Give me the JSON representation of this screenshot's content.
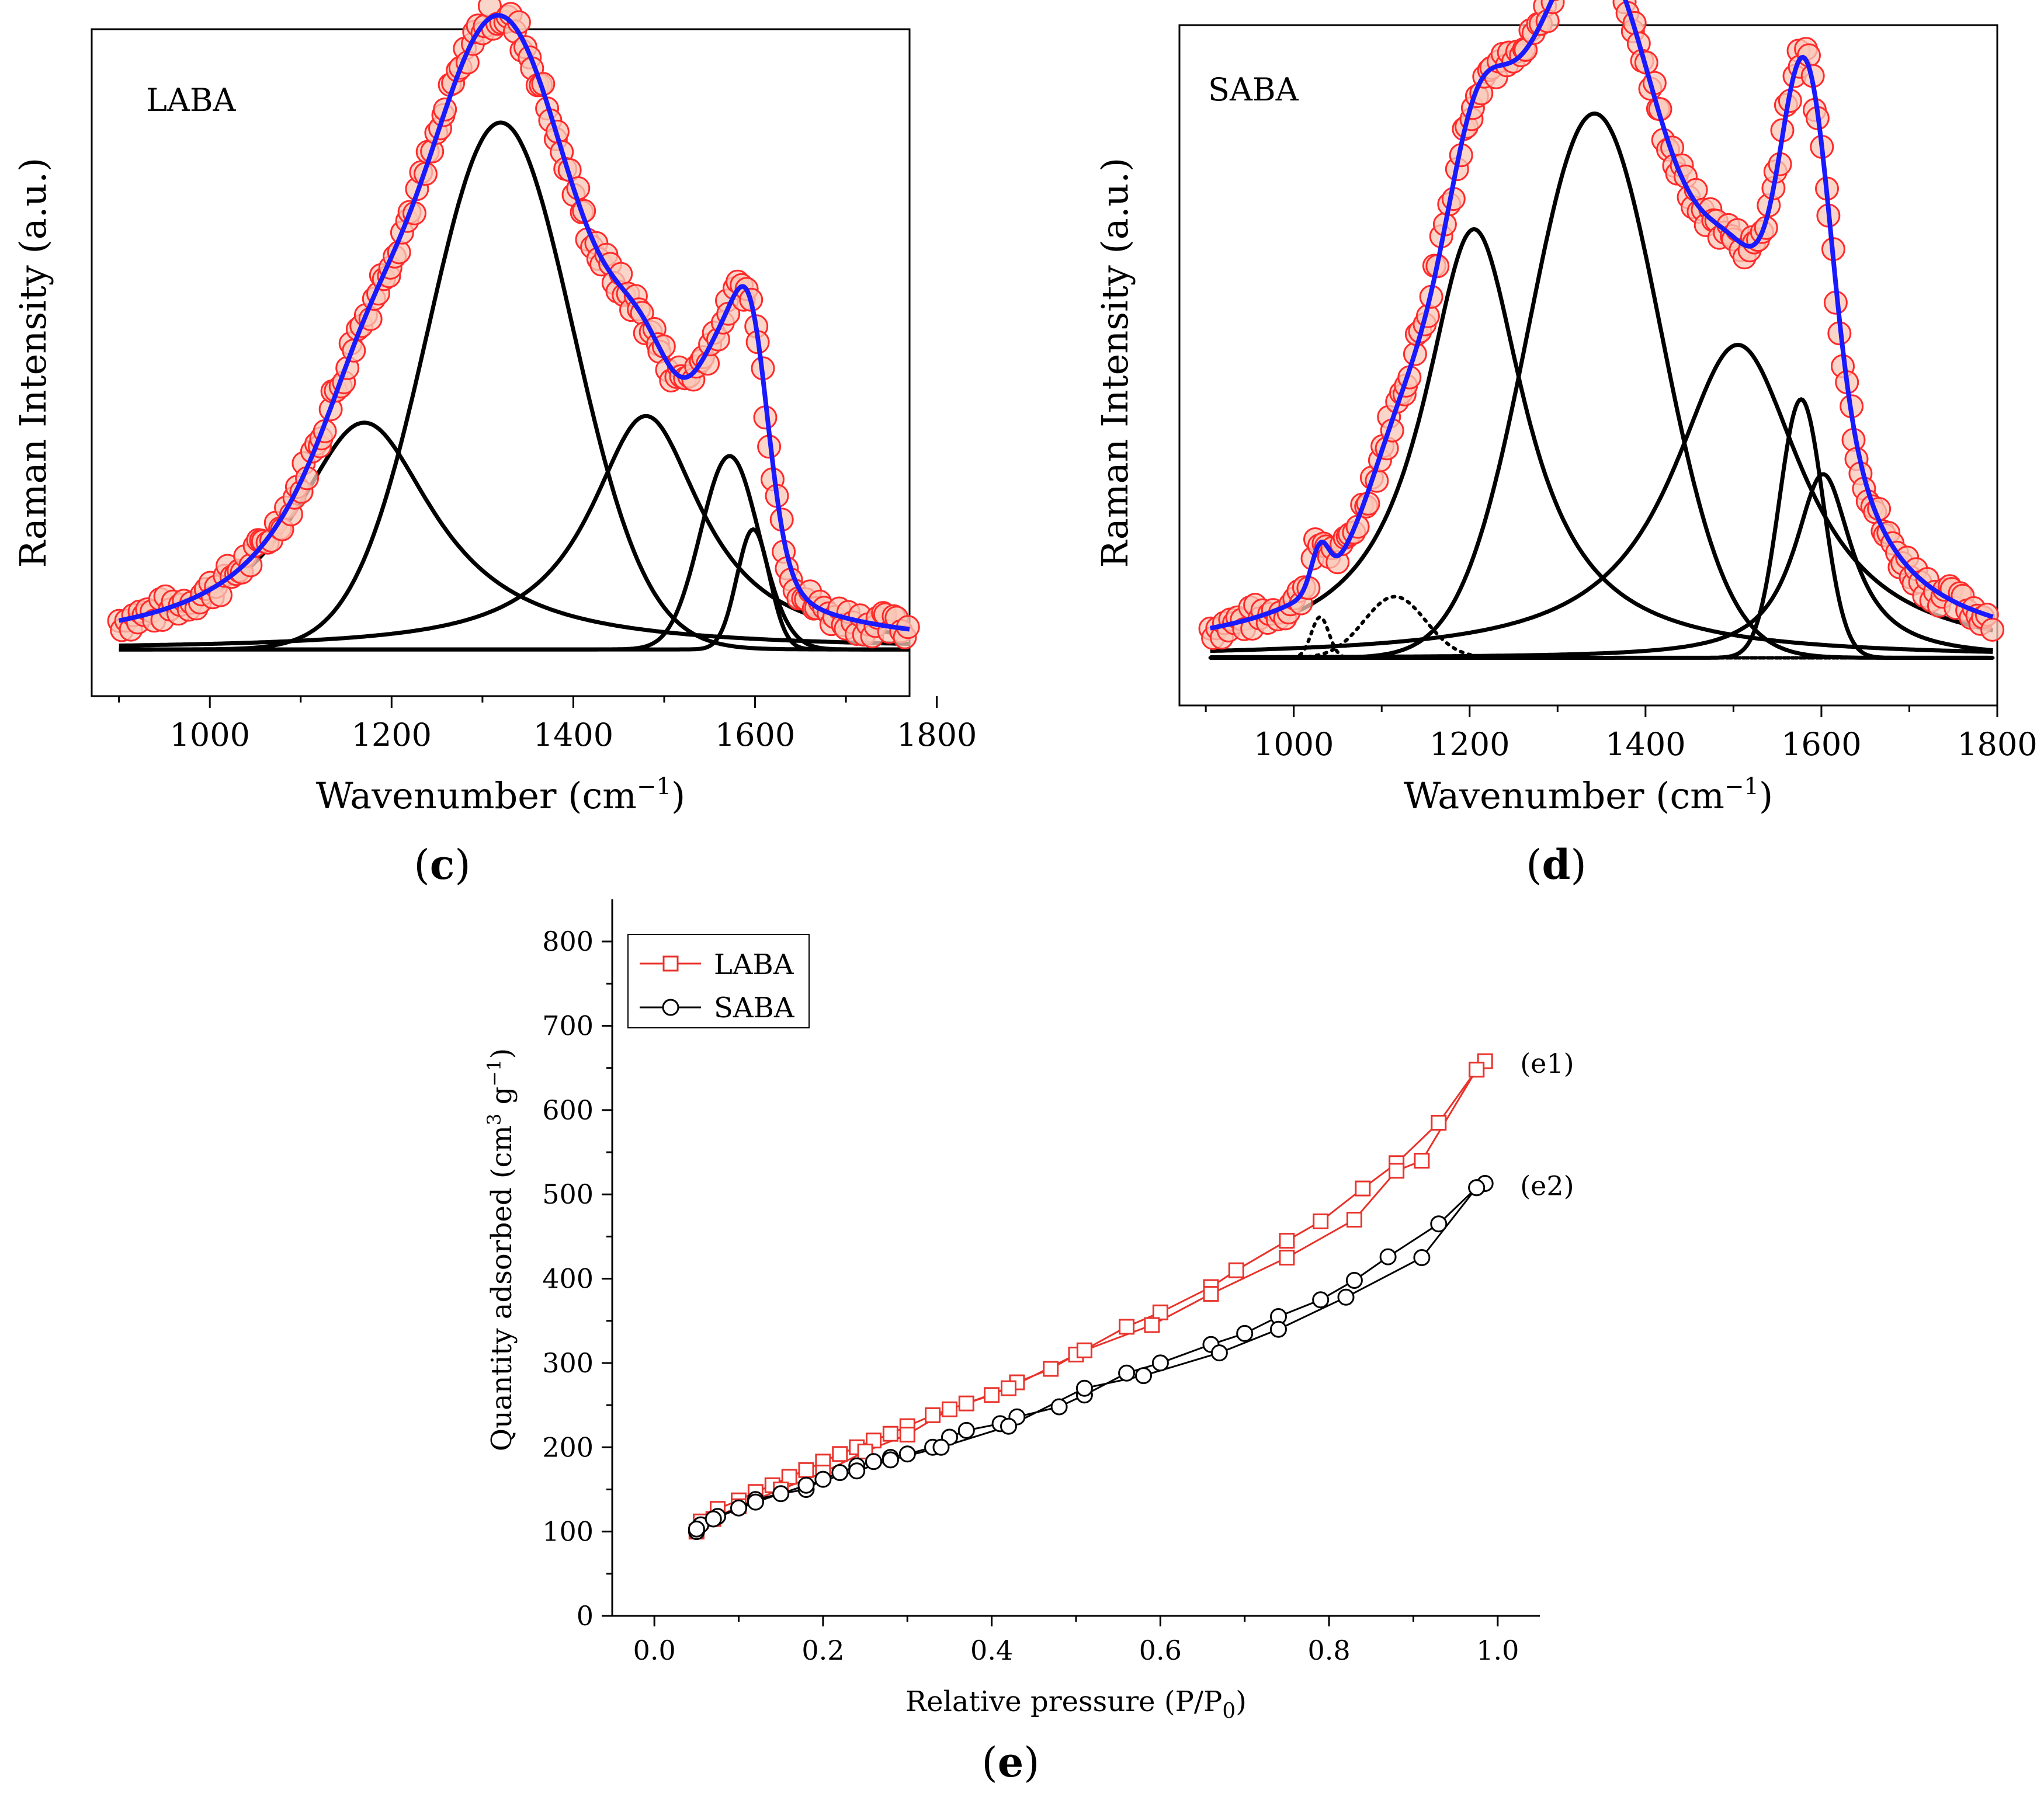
{
  "colors": {
    "raw_data_stroke": "#ff2a2a",
    "raw_data_fill": "#f8c8b8",
    "fit_envelope": "#1a1aff",
    "component": "#000000",
    "laba_series": "#e8322a",
    "saba_series": "#000000"
  },
  "panels": {
    "c": {
      "caption_letter": "c",
      "caption_open": "(",
      "caption_close": ")"
    },
    "d": {
      "caption_letter": "d",
      "caption_open": "(",
      "caption_close": ")"
    },
    "e": {
      "caption_letter": "e",
      "caption_open": "(",
      "caption_close": ")"
    }
  },
  "chart_data": [
    {
      "id": "c",
      "type": "line",
      "inset_label": "LABA",
      "xlabel": "Wavenumber (cm",
      "xlabel_sup": "−1",
      "xlabel_close": ")",
      "ylabel": "Raman Intensity (a.u.)",
      "xlim": [
        870,
        1770
      ],
      "ylim": [
        0,
        1
      ],
      "xticks": [
        1000,
        1200,
        1400,
        1600,
        1800
      ],
      "x_range": [
        900,
        1770
      ],
      "baseline": 0.07,
      "components": [
        {
          "center": 1170,
          "height": 0.34,
          "width": 95,
          "shape": "lorentz",
          "style": "solid"
        },
        {
          "center": 1320,
          "height": 0.79,
          "width": 80,
          "shape": "gauss",
          "style": "solid"
        },
        {
          "center": 1480,
          "height": 0.35,
          "width": 75,
          "shape": "lorentz",
          "style": "solid"
        },
        {
          "center": 1572,
          "height": 0.29,
          "width": 32,
          "shape": "gauss",
          "style": "solid"
        },
        {
          "center": 1598,
          "height": 0.18,
          "width": 18,
          "shape": "gauss",
          "style": "solid"
        }
      ],
      "raw_noise": 0.02
    },
    {
      "id": "d",
      "type": "line",
      "inset_label": "SABA",
      "xlabel": "Wavenumber (cm",
      "xlabel_sup": "−1",
      "xlabel_close": ")",
      "ylabel": "Raman Intensity (a.u.)",
      "xlim": [
        870,
        1800
      ],
      "ylim": [
        0,
        1
      ],
      "xticks": [
        1000,
        1200,
        1400,
        1600,
        1800
      ],
      "x_range": [
        905,
        1795
      ],
      "baseline": 0.07,
      "components": [
        {
          "center": 1030,
          "height": 0.06,
          "width": 10,
          "shape": "gauss",
          "style": "dotted"
        },
        {
          "center": 1115,
          "height": 0.09,
          "width": 35,
          "shape": "gauss",
          "style": "dotted"
        },
        {
          "center": 1205,
          "height": 0.63,
          "width": 70,
          "shape": "lorentz",
          "style": "solid"
        },
        {
          "center": 1342,
          "height": 0.8,
          "width": 75,
          "shape": "gauss",
          "style": "solid"
        },
        {
          "center": 1505,
          "height": 0.46,
          "width": 90,
          "shape": "lorentz",
          "style": "solid"
        },
        {
          "center": 1577,
          "height": 0.38,
          "width": 25,
          "shape": "gauss",
          "style": "solid"
        },
        {
          "center": 1602,
          "height": 0.27,
          "width": 40,
          "shape": "lorentz",
          "style": "solid"
        }
      ],
      "raw_noise": 0.02
    },
    {
      "id": "e",
      "type": "line",
      "xlabel": "Relative pressure (P/P",
      "xlabel_sub": "0",
      "xlabel_close": ")",
      "ylabel_main": "Quantity adsorbed (cm",
      "ylabel_sup1": "3",
      "ylabel_mid": " g",
      "ylabel_sup2": "−1",
      "ylabel_close": ")",
      "xlim": [
        -0.05,
        1.05
      ],
      "ylim": [
        0,
        850
      ],
      "xticks": [
        0.0,
        0.2,
        0.4,
        0.6,
        0.8,
        1.0
      ],
      "xticklabels": [
        "0.0",
        "0.2",
        "0.4",
        "0.6",
        "0.8",
        "1.0"
      ],
      "yticks": [
        0,
        100,
        200,
        300,
        400,
        500,
        600,
        700,
        800
      ],
      "yticklabels": [
        "0",
        "100",
        "200",
        "300",
        "400",
        "500",
        "600",
        "700",
        "800"
      ],
      "legend_position": "top-left",
      "series": [
        {
          "name": "LABA",
          "marker": "square",
          "annotation": "(e1)",
          "x": [
            0.05,
            0.055,
            0.075,
            0.1,
            0.12,
            0.14,
            0.16,
            0.18,
            0.2,
            0.22,
            0.24,
            0.26,
            0.28,
            0.3,
            0.33,
            0.37,
            0.4,
            0.43,
            0.47,
            0.5,
            0.56,
            0.6,
            0.66,
            0.69,
            0.75,
            0.79,
            0.84,
            0.88,
            0.93,
            0.975,
            0.985,
            0.975,
            0.91,
            0.88,
            0.83,
            0.75,
            0.66,
            0.59,
            0.51,
            0.42,
            0.35,
            0.3,
            0.25,
            0.2,
            0.15,
            0.1,
            0.07,
            0.05
          ],
          "y": [
            100,
            112,
            127,
            137,
            147,
            155,
            165,
            173,
            183,
            192,
            200,
            208,
            216,
            225,
            238,
            252,
            262,
            277,
            293,
            310,
            343,
            360,
            390,
            410,
            445,
            468,
            507,
            537,
            585,
            648,
            658,
            648,
            540,
            528,
            470,
            425,
            382,
            345,
            315,
            270,
            245,
            215,
            195,
            170,
            150,
            130,
            115,
            100
          ]
        },
        {
          "name": "SABA",
          "marker": "circle",
          "annotation": "(e2)",
          "x": [
            0.05,
            0.055,
            0.075,
            0.1,
            0.12,
            0.15,
            0.18,
            0.2,
            0.22,
            0.24,
            0.26,
            0.28,
            0.3,
            0.33,
            0.35,
            0.37,
            0.41,
            0.43,
            0.48,
            0.51,
            0.56,
            0.6,
            0.66,
            0.7,
            0.74,
            0.79,
            0.83,
            0.87,
            0.93,
            0.975,
            0.985,
            0.975,
            0.91,
            0.82,
            0.74,
            0.67,
            0.58,
            0.51,
            0.42,
            0.34,
            0.28,
            0.24,
            0.18,
            0.12,
            0.07,
            0.05
          ],
          "y": [
            100,
            108,
            118,
            128,
            138,
            145,
            150,
            162,
            170,
            178,
            183,
            188,
            192,
            200,
            212,
            220,
            228,
            236,
            248,
            262,
            288,
            300,
            322,
            335,
            355,
            375,
            398,
            426,
            465,
            508,
            513,
            508,
            425,
            378,
            340,
            312,
            285,
            270,
            225,
            200,
            185,
            172,
            155,
            135,
            115,
            103
          ]
        }
      ]
    }
  ]
}
